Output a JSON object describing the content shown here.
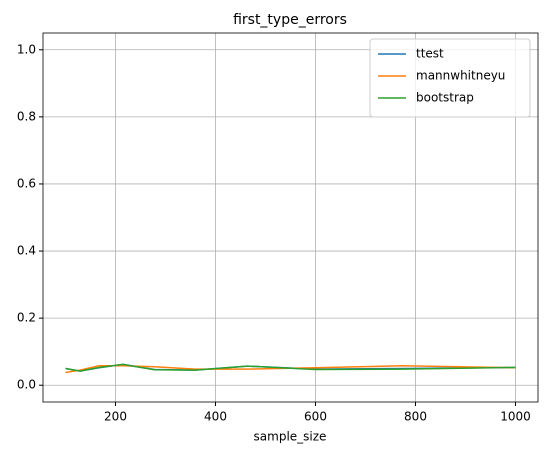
{
  "chart_data": {
    "type": "line",
    "title": "first_type_errors",
    "x_label": "sample_size",
    "x": [
      100,
      129,
      167,
      215,
      278,
      359,
      464,
      599,
      774,
      1000
    ],
    "series": [
      {
        "name": "ttest",
        "color": "#1f77b4",
        "values": [
          0.05,
          0.042,
          0.052,
          0.062,
          0.047,
          0.045,
          0.057,
          0.048,
          0.05,
          0.053
        ]
      },
      {
        "name": "mannwhitneyu",
        "color": "#ff7f0e",
        "values": [
          0.038,
          0.045,
          0.058,
          0.058,
          0.055,
          0.048,
          0.048,
          0.052,
          0.058,
          0.052
        ]
      },
      {
        "name": "bootstrap",
        "color": "#2ca02c",
        "values": [
          0.05,
          0.042,
          0.053,
          0.062,
          0.046,
          0.045,
          0.057,
          0.047,
          0.048,
          0.053
        ]
      }
    ],
    "xlim": [
      55,
      1045
    ],
    "xticks": [
      200,
      400,
      600,
      800,
      1000
    ],
    "ylim": [
      -0.05,
      1.05
    ],
    "yticks": [
      {
        "value": 0,
        "label": "0.0"
      },
      0.2,
      0.4,
      0.6,
      0.8,
      {
        "value": 1,
        "label": "1.0"
      }
    ],
    "grid": true,
    "legend": "upper-right"
  }
}
